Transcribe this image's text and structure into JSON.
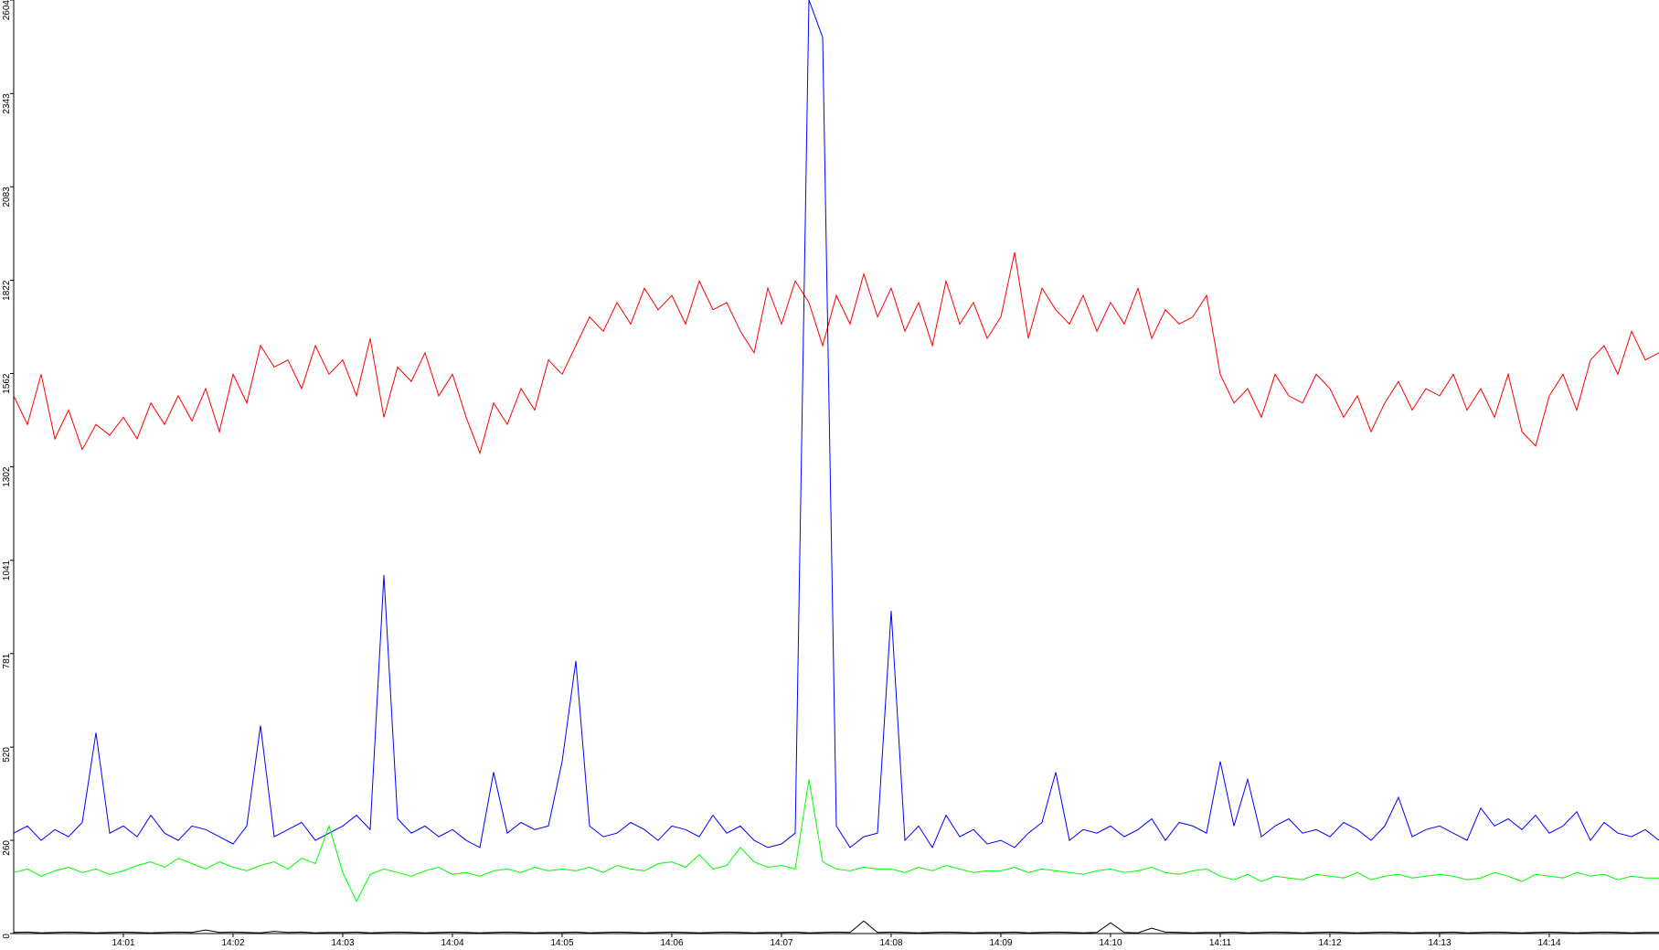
{
  "chart_data": {
    "type": "line",
    "categories": [
      null,
      null,
      null,
      null,
      null,
      null,
      null,
      null,
      "14:01",
      null,
      null,
      null,
      null,
      null,
      null,
      null,
      "14:02",
      null,
      null,
      null,
      null,
      null,
      null,
      null,
      "14:03",
      null,
      null,
      null,
      null,
      null,
      null,
      null,
      "14:04",
      null,
      null,
      null,
      null,
      null,
      null,
      null,
      "14:05",
      null,
      null,
      null,
      null,
      null,
      null,
      null,
      "14:06",
      null,
      null,
      null,
      null,
      null,
      null,
      null,
      "14:07",
      null,
      null,
      null,
      null,
      null,
      null,
      null,
      "14:08",
      null,
      null,
      null,
      null,
      null,
      null,
      null,
      "14:09",
      null,
      null,
      null,
      null,
      null,
      null,
      null,
      "14:10",
      null,
      null,
      null,
      null,
      null,
      null,
      null,
      "14:11",
      null,
      null,
      null,
      null,
      null,
      null,
      null,
      "14:12",
      null,
      null,
      null,
      null,
      null,
      null,
      null,
      "14:13",
      null,
      null,
      null,
      null,
      null,
      null,
      null,
      "14:14",
      null,
      null,
      null,
      null,
      null,
      null,
      null,
      null
    ],
    "series": [
      {
        "color": "#ff0000",
        "values": [
          1500,
          1420,
          1560,
          1380,
          1460,
          1350,
          1420,
          1390,
          1440,
          1380,
          1480,
          1420,
          1500,
          1430,
          1520,
          1400,
          1560,
          1480,
          1640,
          1580,
          1600,
          1520,
          1640,
          1560,
          1600,
          1500,
          1660,
          1440,
          1580,
          1540,
          1620,
          1500,
          1560,
          1440,
          1340,
          1480,
          1420,
          1520,
          1460,
          1600,
          1560,
          1640,
          1720,
          1680,
          1760,
          1700,
          1800,
          1740,
          1780,
          1700,
          1820,
          1740,
          1760,
          1680,
          1620,
          1800,
          1700,
          1820,
          1760,
          1640,
          1780,
          1700,
          1840,
          1720,
          1800,
          1680,
          1760,
          1640,
          1820,
          1700,
          1760,
          1660,
          1720,
          1900,
          1660,
          1800,
          1740,
          1700,
          1780,
          1680,
          1760,
          1700,
          1800,
          1660,
          1740,
          1700,
          1720,
          1780,
          1560,
          1480,
          1520,
          1440,
          1560,
          1500,
          1480,
          1560,
          1520,
          1440,
          1500,
          1400,
          1480,
          1540,
          1460,
          1520,
          1500,
          1560,
          1460,
          1520,
          1440,
          1560,
          1400,
          1360,
          1500,
          1560,
          1460,
          1600,
          1640,
          1560,
          1680,
          1600,
          1620
        ]
      },
      {
        "color": "#0000ff",
        "values": [
          280,
          300,
          260,
          290,
          270,
          310,
          560,
          280,
          300,
          270,
          330,
          280,
          260,
          300,
          290,
          270,
          250,
          300,
          580,
          270,
          290,
          310,
          260,
          280,
          300,
          330,
          290,
          1000,
          320,
          280,
          300,
          270,
          290,
          260,
          240,
          450,
          280,
          310,
          290,
          300,
          480,
          760,
          300,
          270,
          280,
          310,
          290,
          260,
          300,
          290,
          270,
          330,
          280,
          300,
          260,
          240,
          250,
          280,
          2604,
          2500,
          300,
          240,
          270,
          280,
          900,
          260,
          300,
          240,
          330,
          270,
          290,
          250,
          260,
          240,
          280,
          310,
          450,
          260,
          290,
          280,
          300,
          270,
          290,
          320,
          260,
          310,
          300,
          280,
          480,
          300,
          430,
          270,
          300,
          320,
          280,
          290,
          270,
          310,
          290,
          260,
          300,
          380,
          270,
          290,
          300,
          280,
          260,
          350,
          300,
          320,
          290,
          330,
          280,
          300,
          340,
          260,
          310,
          280,
          270,
          290,
          260
        ]
      },
      {
        "color": "#00ff00",
        "values": [
          170,
          180,
          160,
          175,
          185,
          170,
          180,
          165,
          175,
          190,
          200,
          185,
          210,
          195,
          180,
          200,
          185,
          175,
          190,
          200,
          180,
          210,
          195,
          300,
          170,
          90,
          165,
          180,
          170,
          160,
          175,
          185,
          165,
          170,
          160,
          175,
          180,
          170,
          185,
          175,
          180,
          175,
          185,
          170,
          190,
          180,
          175,
          195,
          200,
          185,
          220,
          180,
          190,
          240,
          200,
          185,
          190,
          180,
          430,
          200,
          180,
          175,
          185,
          180,
          180,
          170,
          185,
          175,
          190,
          180,
          170,
          175,
          175,
          185,
          170,
          180,
          175,
          170,
          165,
          175,
          180,
          170,
          175,
          185,
          170,
          165,
          175,
          180,
          160,
          150,
          165,
          145,
          160,
          155,
          150,
          165,
          160,
          155,
          170,
          150,
          160,
          165,
          155,
          160,
          165,
          160,
          150,
          155,
          170,
          160,
          145,
          165,
          160,
          155,
          170,
          160,
          165,
          150,
          160,
          155,
          155
        ]
      },
      {
        "color": "#000000",
        "values": [
          3,
          4,
          2,
          3,
          4,
          3,
          2,
          3,
          4,
          3,
          2,
          3,
          4,
          3,
          10,
          3,
          4,
          3,
          2,
          6,
          3,
          4,
          2,
          3,
          3,
          4,
          2,
          3,
          4,
          3,
          2,
          3,
          4,
          3,
          2,
          3,
          4,
          3,
          2,
          3,
          3,
          4,
          2,
          3,
          4,
          3,
          2,
          3,
          4,
          3,
          2,
          3,
          4,
          3,
          2,
          3,
          3,
          4,
          2,
          3,
          4,
          3,
          35,
          3,
          4,
          3,
          2,
          3,
          4,
          3,
          2,
          3,
          3,
          4,
          2,
          3,
          4,
          3,
          2,
          3,
          30,
          3,
          2,
          15,
          4,
          3,
          2,
          3,
          3,
          4,
          2,
          3,
          4,
          3,
          2,
          3,
          4,
          3,
          2,
          3,
          4,
          3,
          2,
          3,
          3,
          4,
          2,
          3,
          4,
          3,
          2,
          3,
          4,
          3,
          2,
          3,
          4,
          3,
          2,
          3,
          3
        ]
      }
    ],
    "ylim": [
      0,
      2604
    ],
    "yticks": [
      0,
      260,
      520,
      781,
      1041,
      1302,
      1562,
      1822,
      2083,
      2343,
      2604
    ]
  }
}
